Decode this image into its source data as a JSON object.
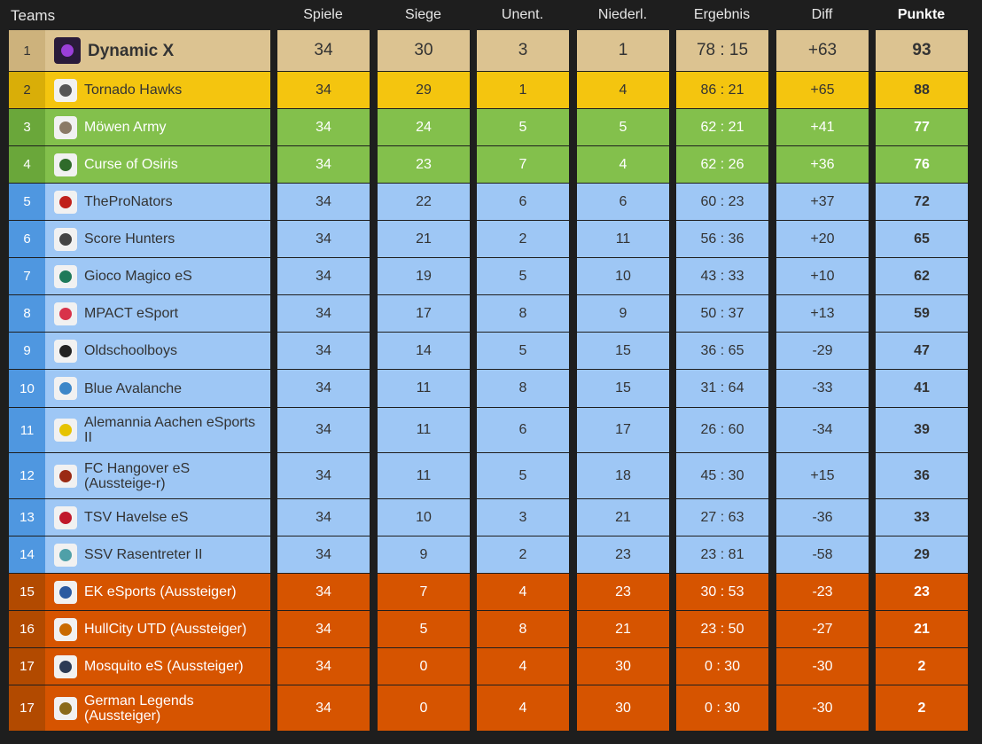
{
  "header": {
    "teams": "Teams",
    "spiele": "Spiele",
    "siege": "Siege",
    "unent": "Unent.",
    "niederl": "Niederl.",
    "ergebnis": "Ergebnis",
    "diff": "Diff",
    "punkte": "Punkte"
  },
  "theme_colors": {
    "first": "#dcc391",
    "gold": "#f4c50f",
    "green": "#83c04c",
    "blue": "#9ec7f5",
    "orange": "#d65400"
  },
  "rows": [
    {
      "rank": "1",
      "team": "Dynamic X",
      "spiele": "34",
      "siege": "30",
      "unent": "3",
      "niederl": "1",
      "ergebnis": "78 : 15",
      "diff": "+63",
      "punkte": "93",
      "icon": "dynamic-x-logo",
      "logo_color": "#9b3fd9"
    },
    {
      "rank": "2",
      "team": "Tornado Hawks",
      "spiele": "34",
      "siege": "29",
      "unent": "1",
      "niederl": "4",
      "ergebnis": "86 : 21",
      "diff": "+65",
      "punkte": "88",
      "icon": "tornado-hawks-logo",
      "logo_color": "#555555"
    },
    {
      "rank": "3",
      "team": "Möwen Army",
      "spiele": "34",
      "siege": "24",
      "unent": "5",
      "niederl": "5",
      "ergebnis": "62 : 21",
      "diff": "+41",
      "punkte": "77",
      "icon": "moewen-army-logo",
      "logo_color": "#8a7a66"
    },
    {
      "rank": "4",
      "team": "Curse of Osiris",
      "spiele": "34",
      "siege": "23",
      "unent": "7",
      "niederl": "4",
      "ergebnis": "62 : 26",
      "diff": "+36",
      "punkte": "76",
      "icon": "curse-of-osiris-logo",
      "logo_color": "#2f6b2a"
    },
    {
      "rank": "5",
      "team": "TheProNators",
      "spiele": "34",
      "siege": "22",
      "unent": "6",
      "niederl": "6",
      "ergebnis": "60 : 23",
      "diff": "+37",
      "punkte": "72",
      "icon": "thepronators-logo",
      "logo_color": "#c0201a"
    },
    {
      "rank": "6",
      "team": "Score Hunters",
      "spiele": "34",
      "siege": "21",
      "unent": "2",
      "niederl": "11",
      "ergebnis": "56 : 36",
      "diff": "+20",
      "punkte": "65",
      "icon": "score-hunters-logo",
      "logo_color": "#444444"
    },
    {
      "rank": "7",
      "team": "Gioco Magico eS",
      "spiele": "34",
      "siege": "19",
      "unent": "5",
      "niederl": "10",
      "ergebnis": "43 : 33",
      "diff": "+10",
      "punkte": "62",
      "icon": "gioco-magico-logo",
      "logo_color": "#1f7a5a"
    },
    {
      "rank": "8",
      "team": "MPACT eSport",
      "spiele": "34",
      "siege": "17",
      "unent": "8",
      "niederl": "9",
      "ergebnis": "50 : 37",
      "diff": "+13",
      "punkte": "59",
      "icon": "mpact-esport-logo",
      "logo_color": "#d8324a"
    },
    {
      "rank": "9",
      "team": "Oldschoolboys",
      "spiele": "34",
      "siege": "14",
      "unent": "5",
      "niederl": "15",
      "ergebnis": "36 : 65",
      "diff": "-29",
      "punkte": "47",
      "icon": "oldschoolboys-logo",
      "logo_color": "#222222"
    },
    {
      "rank": "10",
      "team": "Blue Avalanche",
      "spiele": "34",
      "siege": "11",
      "unent": "8",
      "niederl": "15",
      "ergebnis": "31 : 64",
      "diff": "-33",
      "punkte": "41",
      "icon": "blue-avalanche-logo",
      "logo_color": "#3c86c8"
    },
    {
      "rank": "11",
      "team": "Alemannia Aachen eSports II",
      "spiele": "34",
      "siege": "11",
      "unent": "6",
      "niederl": "17",
      "ergebnis": "26 : 60",
      "diff": "-34",
      "punkte": "39",
      "icon": "alemannia-aachen-logo",
      "logo_color": "#e6c300"
    },
    {
      "rank": "12",
      "team": "FC Hangover eS (Aussteige-r)",
      "spiele": "34",
      "siege": "11",
      "unent": "5",
      "niederl": "18",
      "ergebnis": "45 : 30",
      "diff": "+15",
      "punkte": "36",
      "icon": "fc-hangover-logo",
      "logo_color": "#9a2a14"
    },
    {
      "rank": "13",
      "team": "TSV Havelse eS",
      "spiele": "34",
      "siege": "10",
      "unent": "3",
      "niederl": "21",
      "ergebnis": "27 : 63",
      "diff": "-36",
      "punkte": "33",
      "icon": "tsv-havelse-logo",
      "logo_color": "#c0182b"
    },
    {
      "rank": "14",
      "team": "SSV Rasentreter II",
      "spiele": "34",
      "siege": "9",
      "unent": "2",
      "niederl": "23",
      "ergebnis": "23 : 81",
      "diff": "-58",
      "punkte": "29",
      "icon": "ssv-rasentreter-logo",
      "logo_color": "#4fa0a8"
    },
    {
      "rank": "15",
      "team": "EK eSports (Aussteiger)",
      "spiele": "34",
      "siege": "7",
      "unent": "4",
      "niederl": "23",
      "ergebnis": "30 : 53",
      "diff": "-23",
      "punkte": "23",
      "icon": "ek-esports-logo",
      "logo_color": "#2b5aa0"
    },
    {
      "rank": "16",
      "team": "HullCity UTD (Aussteiger)",
      "spiele": "34",
      "siege": "5",
      "unent": "8",
      "niederl": "21",
      "ergebnis": "23 : 50",
      "diff": "-27",
      "punkte": "21",
      "icon": "hullcity-utd-logo",
      "logo_color": "#c96a00"
    },
    {
      "rank": "17",
      "team": "Mosquito eS (Aussteiger)",
      "spiele": "34",
      "siege": "0",
      "unent": "4",
      "niederl": "30",
      "ergebnis": "0 : 30",
      "diff": "-30",
      "punkte": "2",
      "icon": "mosquito-es-logo",
      "logo_color": "#2c3b55"
    },
    {
      "rank": "17",
      "team": "German Legends (Aussteiger)",
      "spiele": "34",
      "siege": "0",
      "unent": "4",
      "niederl": "30",
      "ergebnis": "0 : 30",
      "diff": "-30",
      "punkte": "2",
      "icon": "german-legends-logo",
      "logo_color": "#8a6a1a"
    }
  ]
}
